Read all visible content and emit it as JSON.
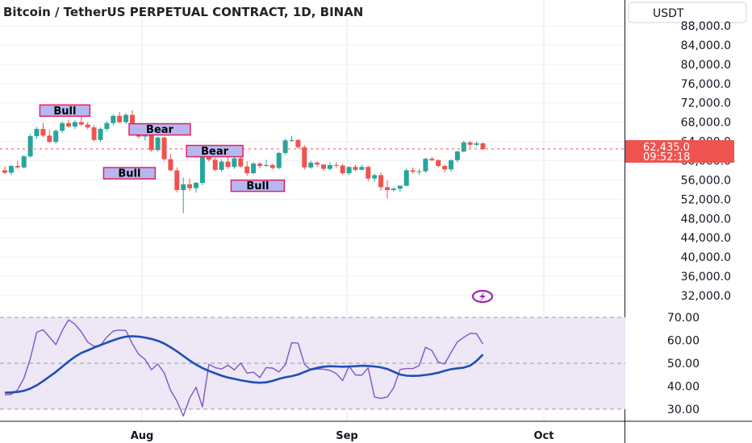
{
  "chart_data": [
    {
      "type": "candlestick",
      "title": "Bitcoin / TetherUS PERPETUAL CONTRACT, 1D, BINAN",
      "currency_label": "USDT",
      "y_ticks": [
        32000,
        36000,
        40000,
        44000,
        48000,
        52000,
        56000,
        60000,
        64000,
        68000,
        72000,
        76000,
        80000,
        84000,
        88000
      ],
      "y_tick_labels": [
        "32,000.0",
        "36,000.0",
        "40,000.0",
        "44,000.0",
        "48,000.0",
        "52,000.0",
        "56,000.0",
        "60,000.0",
        "64,000.0",
        "68,000.0",
        "72,000.0",
        "76,000.0",
        "80,000.0",
        "84,000.0",
        "88,000.0"
      ],
      "x_labels": [
        "Aug",
        "Sep",
        "Oct"
      ],
      "last_price": "62,435.0",
      "countdown": "09:52:18",
      "colors": {
        "up": "#26a69a",
        "down": "#ef5350",
        "price_line": "#ef5350",
        "tag_fill": "#b5b8f0",
        "tag_border": "#e91e63"
      },
      "candles": [
        [
          58000,
          58800,
          57200,
          57500
        ],
        [
          57500,
          59200,
          57000,
          58900
        ],
        [
          58900,
          60000,
          58300,
          58600
        ],
        [
          58600,
          61200,
          58400,
          60900
        ],
        [
          60900,
          65500,
          60600,
          65100
        ],
        [
          65100,
          67000,
          64500,
          66600
        ],
        [
          66600,
          67800,
          64900,
          65200
        ],
        [
          65200,
          66400,
          63600,
          63900
        ],
        [
          63900,
          66500,
          63500,
          66200
        ],
        [
          66200,
          68200,
          65800,
          67800
        ],
        [
          67800,
          68500,
          66900,
          67100
        ],
        [
          67100,
          68400,
          66600,
          68000
        ],
        [
          68000,
          69100,
          67200,
          67500
        ],
        [
          67500,
          68000,
          66500,
          66900
        ],
        [
          66900,
          67400,
          64000,
          64300
        ],
        [
          64300,
          66900,
          63900,
          66600
        ],
        [
          66600,
          68200,
          66100,
          67800
        ],
        [
          67800,
          69600,
          67300,
          69300
        ],
        [
          69300,
          70100,
          67800,
          68000
        ],
        [
          68000,
          69900,
          67600,
          69500
        ],
        [
          69500,
          70500,
          66500,
          66800
        ],
        [
          66800,
          67600,
          64600,
          65000
        ],
        [
          65000,
          66600,
          64200,
          66300
        ],
        [
          66300,
          66800,
          61800,
          62200
        ],
        [
          62200,
          65000,
          61900,
          64800
        ],
        [
          64800,
          65000,
          60000,
          60300
        ],
        [
          60300,
          61400,
          57800,
          58000
        ],
        [
          58000,
          58600,
          53400,
          53900
        ],
        [
          53900,
          56500,
          49100,
          55100
        ],
        [
          55100,
          56300,
          53700,
          54300
        ],
        [
          54300,
          55600,
          53400,
          55400
        ],
        [
          55400,
          62200,
          54900,
          61800
        ],
        [
          61800,
          61900,
          59800,
          60200
        ],
        [
          60200,
          60600,
          57800,
          58100
        ],
        [
          58100,
          60300,
          57600,
          59800
        ],
        [
          59800,
          61600,
          58300,
          58700
        ],
        [
          58700,
          61000,
          58300,
          60500
        ],
        [
          60500,
          60800,
          58500,
          58800
        ],
        [
          58800,
          59900,
          56900,
          57400
        ],
        [
          57400,
          59700,
          57200,
          59400
        ],
        [
          59400,
          59700,
          58400,
          58900
        ],
        [
          58900,
          60200,
          58700,
          59100
        ],
        [
          59100,
          59400,
          58200,
          58500
        ],
        [
          58500,
          61900,
          58200,
          61600
        ],
        [
          61600,
          64600,
          61200,
          64200
        ],
        [
          64200,
          65100,
          63900,
          64300
        ],
        [
          64300,
          64500,
          62400,
          62800
        ],
        [
          62800,
          63200,
          58100,
          58600
        ],
        [
          58600,
          60000,
          58300,
          59600
        ],
        [
          59600,
          59900,
          58700,
          59200
        ],
        [
          59200,
          59300,
          57800,
          58300
        ],
        [
          58300,
          59700,
          58000,
          59100
        ],
        [
          59100,
          59700,
          58500,
          59000
        ],
        [
          59000,
          59300,
          57100,
          57400
        ],
        [
          57400,
          58900,
          57000,
          58700
        ],
        [
          58700,
          59100,
          57800,
          58100
        ],
        [
          58100,
          59200,
          58000,
          58700
        ],
        [
          58700,
          58900,
          55800,
          56300
        ],
        [
          56300,
          57300,
          55600,
          57000
        ],
        [
          57000,
          57600,
          53800,
          54500
        ],
        [
          54500,
          55900,
          52200,
          53900
        ],
        [
          53900,
          54600,
          53600,
          54200
        ],
        [
          54200,
          54900,
          53500,
          54800
        ],
        [
          54800,
          58400,
          54700,
          58000
        ],
        [
          58000,
          58600,
          57300,
          57700
        ],
        [
          57700,
          58300,
          57100,
          57800
        ],
        [
          57800,
          60600,
          57500,
          60400
        ],
        [
          60400,
          60800,
          59900,
          60100
        ],
        [
          60100,
          60300,
          58600,
          58900
        ],
        [
          58900,
          59200,
          57600,
          58200
        ],
        [
          58200,
          60300,
          57700,
          60100
        ],
        [
          60100,
          62100,
          59600,
          61900
        ],
        [
          61900,
          64100,
          61700,
          63800
        ],
        [
          63800,
          64100,
          62600,
          63300
        ],
        [
          63300,
          64000,
          63000,
          63600
        ],
        [
          63600,
          63800,
          62200,
          62435
        ]
      ],
      "pattern_tags": [
        "Bull",
        "Bear",
        "Bull",
        "Bear",
        "Bull"
      ]
    },
    {
      "type": "line",
      "title": "",
      "y_ticks": [
        30,
        40,
        50,
        60,
        70
      ],
      "y_tick_labels": [
        "30.00",
        "40.00",
        "50.00",
        "60.00",
        "70.00"
      ],
      "band": [
        30,
        70
      ],
      "colors": {
        "fast": "#7e57c2",
        "slow": "#1e4fb5",
        "band": "#ede7f6"
      },
      "series": [
        {
          "values": [
            36.2,
            36.5,
            38.4,
            43.5,
            52.1,
            63.5,
            64.6,
            61.4,
            58.1,
            64.2,
            68.9,
            67.0,
            63.7,
            59.2,
            57.4,
            57.8,
            61.4,
            64.0,
            64.5,
            64.2,
            58.5,
            53.9,
            51.7,
            47.2,
            49.7,
            45.8,
            38.2,
            33.5,
            27.0,
            34.8,
            39.5,
            31.0,
            49.5,
            48.1,
            47.5,
            49.2,
            47.1,
            50.1,
            45.7,
            46.1,
            43.8,
            48.1,
            47.9,
            46.2,
            49.3,
            58.9,
            58.8,
            49.6,
            47.1,
            47.5,
            47.4,
            46.9,
            45.5,
            42.5,
            48.7,
            44.9,
            44.8,
            48.0,
            35.3,
            34.7,
            35.3,
            39.3,
            47.3,
            47.7,
            47.7,
            49.0,
            57.0,
            55.5,
            50.5,
            49.7,
            54.7,
            59.3,
            61.3,
            63.0,
            62.9,
            58.4
          ]
        },
        {
          "values": [
            37.2,
            37.3,
            37.5,
            38.0,
            39.0,
            40.4,
            42.2,
            44.2,
            46.2,
            48.5,
            50.8,
            52.8,
            54.5,
            55.6,
            56.8,
            57.9,
            59.0,
            60.0,
            60.9,
            61.6,
            61.8,
            61.6,
            61.2,
            60.6,
            59.8,
            58.6,
            57.0,
            55.2,
            53.2,
            51.2,
            49.4,
            47.9,
            46.7,
            45.6,
            44.6,
            43.8,
            43.2,
            42.6,
            42.1,
            41.7,
            41.5,
            41.7,
            42.3,
            43.2,
            43.9,
            44.4,
            45.1,
            46.2,
            47.3,
            48.0,
            48.5,
            48.7,
            48.6,
            48.5,
            48.6,
            48.7,
            48.9,
            48.8,
            48.6,
            48.2,
            47.5,
            46.3,
            45.1,
            44.6,
            44.5,
            44.6,
            44.9,
            45.3,
            45.9,
            46.7,
            47.4,
            47.8,
            48.1,
            49.0,
            51.0,
            53.8
          ]
        }
      ]
    }
  ]
}
